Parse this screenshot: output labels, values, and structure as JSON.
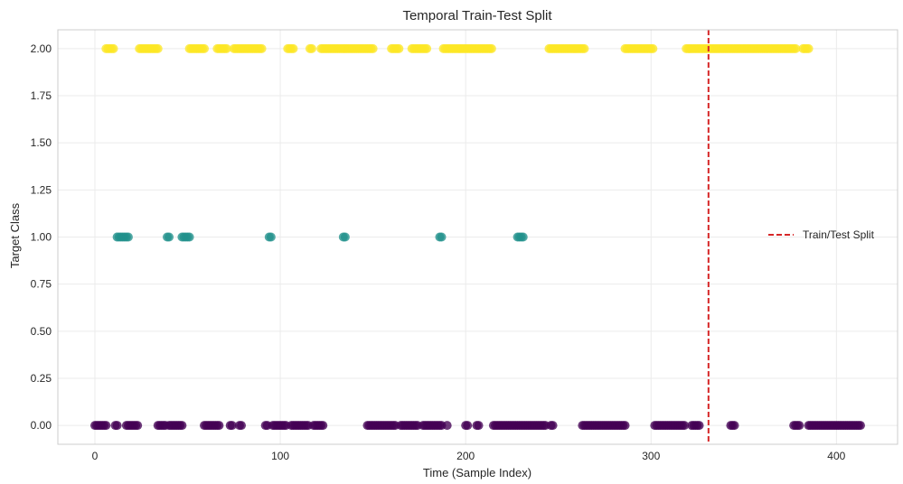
{
  "chart_data": {
    "type": "scatter",
    "title": "Temporal Train-Test Split",
    "xlabel": "Time (Sample Index)",
    "ylabel": "Target Class",
    "xlim": [
      -20,
      433
    ],
    "ylim": [
      -0.1,
      2.1
    ],
    "xticks": [
      0,
      100,
      200,
      300,
      400
    ],
    "xtick_labels": [
      "0",
      "100",
      "200",
      "300",
      "400"
    ],
    "yticks": [
      0,
      0.25,
      0.5,
      0.75,
      1,
      1.25,
      1.5,
      1.75,
      2
    ],
    "ytick_labels": [
      "0.00",
      "0.25",
      "0.50",
      "0.75",
      "1.00",
      "1.25",
      "1.50",
      "1.75",
      "2.00"
    ],
    "grid": true,
    "legend_position": "right",
    "point_colors": {
      "0": "#440154",
      "1": "#21918c",
      "2": "#fde725"
    },
    "split": {
      "x": 331,
      "label": "Train/Test Split",
      "color": "#d62728"
    },
    "points": {
      "class_0": [
        0,
        1,
        2,
        3,
        4,
        5,
        6,
        11,
        12,
        17,
        18,
        19,
        20,
        21,
        22,
        23,
        34,
        35,
        36,
        37,
        38,
        40,
        41,
        42,
        43,
        44,
        45,
        46,
        47,
        59,
        60,
        61,
        62,
        63,
        64,
        65,
        66,
        67,
        73,
        74,
        78,
        79,
        92,
        93,
        96,
        97,
        98,
        99,
        100,
        101,
        102,
        103,
        106,
        107,
        108,
        109,
        110,
        111,
        112,
        113,
        114,
        115,
        118,
        119,
        120,
        121,
        122,
        123,
        147,
        148,
        149,
        150,
        151,
        152,
        153,
        154,
        155,
        156,
        157,
        158,
        159,
        160,
        161,
        162,
        165,
        166,
        167,
        168,
        169,
        170,
        171,
        172,
        173,
        174,
        177,
        178,
        179,
        180,
        181,
        182,
        183,
        184,
        185,
        186,
        187,
        190,
        200,
        201,
        206,
        207,
        215,
        216,
        217,
        218,
        219,
        220,
        221,
        222,
        223,
        224,
        225,
        226,
        227,
        228,
        229,
        230,
        231,
        232,
        233,
        234,
        235,
        236,
        237,
        238,
        239,
        240,
        241,
        242,
        243,
        246,
        247,
        263,
        264,
        265,
        266,
        267,
        268,
        269,
        270,
        271,
        272,
        273,
        274,
        275,
        276,
        277,
        278,
        279,
        280,
        281,
        282,
        283,
        284,
        285,
        286,
        302,
        303,
        304,
        305,
        306,
        307,
        308,
        309,
        310,
        311,
        312,
        313,
        314,
        315,
        316,
        317,
        318,
        322,
        323,
        324,
        325,
        326,
        343,
        344,
        345,
        377,
        378,
        379,
        380,
        385,
        386,
        387,
        388,
        389,
        390,
        391,
        392,
        393,
        394,
        395,
        396,
        397,
        398,
        399,
        400,
        401,
        402,
        403,
        404,
        405,
        406,
        407,
        408,
        409,
        410,
        411,
        412,
        413
      ],
      "class_1": [
        12,
        13,
        14,
        15,
        16,
        17,
        18,
        39,
        40,
        47,
        48,
        49,
        50,
        51,
        94,
        95,
        134,
        135,
        186,
        187,
        228,
        229,
        230,
        231
      ],
      "class_2": [
        6,
        7,
        8,
        9,
        10,
        24,
        25,
        26,
        27,
        28,
        29,
        30,
        31,
        32,
        33,
        34,
        51,
        52,
        53,
        54,
        55,
        56,
        57,
        58,
        59,
        66,
        67,
        68,
        69,
        70,
        71,
        75,
        76,
        77,
        78,
        79,
        80,
        81,
        82,
        83,
        84,
        85,
        86,
        87,
        88,
        89,
        90,
        104,
        105,
        106,
        107,
        116,
        117,
        122,
        123,
        124,
        125,
        126,
        127,
        128,
        129,
        130,
        131,
        132,
        133,
        134,
        135,
        136,
        137,
        138,
        139,
        140,
        141,
        142,
        143,
        144,
        145,
        146,
        147,
        148,
        149,
        150,
        160,
        161,
        162,
        163,
        164,
        171,
        172,
        173,
        174,
        175,
        176,
        177,
        178,
        179,
        188,
        189,
        190,
        191,
        192,
        193,
        194,
        195,
        196,
        197,
        198,
        199,
        200,
        201,
        202,
        203,
        204,
        205,
        206,
        207,
        208,
        209,
        210,
        211,
        212,
        213,
        214,
        245,
        246,
        247,
        248,
        249,
        250,
        251,
        252,
        253,
        254,
        255,
        256,
        257,
        258,
        259,
        260,
        261,
        262,
        263,
        264,
        286,
        287,
        288,
        289,
        290,
        291,
        292,
        293,
        294,
        295,
        296,
        297,
        298,
        299,
        300,
        301,
        319,
        320,
        321,
        322,
        323,
        324,
        325,
        326,
        327,
        328,
        329,
        330,
        331,
        332,
        333,
        334,
        335,
        336,
        337,
        338,
        339,
        340,
        341,
        342,
        343,
        344,
        345,
        346,
        347,
        348,
        349,
        350,
        351,
        352,
        353,
        354,
        355,
        356,
        357,
        358,
        359,
        360,
        361,
        362,
        363,
        364,
        365,
        366,
        367,
        368,
        369,
        370,
        371,
        372,
        373,
        374,
        375,
        376,
        377,
        378,
        382,
        383,
        384,
        385
      ]
    }
  }
}
